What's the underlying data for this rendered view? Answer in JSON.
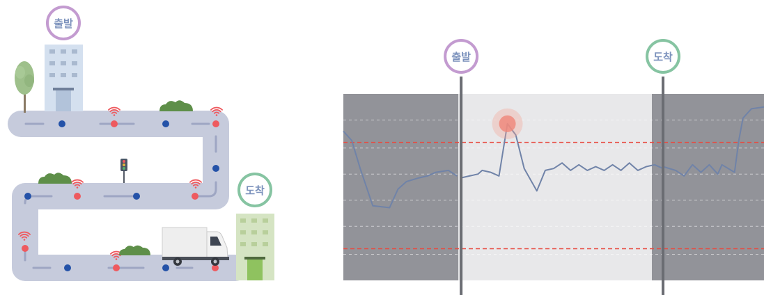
{
  "map": {
    "start_label": "출발",
    "arrival_label": "도착",
    "colors": {
      "road": "#c6cbdc",
      "road_line": "#9ea6c3",
      "blue_dot": "#2452a8",
      "red_dot": "#ee5a5f",
      "start": "#c39bd0",
      "arrival": "#86c4a2",
      "building_start": "#d4e0ef",
      "building_arrival": "#d5e4c3",
      "bush": "#5e8f49",
      "tree": "#9ec08b"
    },
    "icons": [
      "wifi-signal-icon",
      "traffic-light-icon",
      "truck-icon",
      "tree-icon",
      "bush-icon",
      "building-icon"
    ]
  },
  "chart_data": {
    "type": "line",
    "title": "",
    "xlabel": "",
    "ylabel": "",
    "xlim": [
      0,
      100
    ],
    "ylim": [
      0,
      100
    ],
    "grid": true,
    "markers": [
      {
        "label": "출발",
        "x": 28
      },
      {
        "label": "도착",
        "x": 76
      }
    ],
    "thresholds": [
      74,
      17
    ],
    "series": [
      {
        "segments": [
          [
            [
              0,
              80
            ],
            [
              2,
              75
            ],
            [
              4,
              60
            ],
            [
              7,
              40
            ],
            [
              11,
              39
            ],
            [
              13,
              49
            ],
            [
              15,
              53
            ],
            [
              18,
              55
            ],
            [
              20,
              56
            ],
            [
              22,
              58
            ],
            [
              25,
              59
            ],
            [
              27,
              56
            ]
          ],
          [
            [
              28,
              55
            ],
            [
              30,
              56
            ],
            [
              32,
              57
            ],
            [
              33,
              59
            ],
            [
              35,
              58
            ],
            [
              37,
              56
            ],
            [
              39,
              84
            ],
            [
              41,
              78
            ],
            [
              43,
              60
            ],
            [
              46,
              48
            ],
            [
              48,
              59
            ],
            [
              50,
              60
            ],
            [
              52,
              63
            ],
            [
              54,
              59
            ],
            [
              56,
              62
            ],
            [
              58,
              59
            ],
            [
              60,
              61
            ],
            [
              62,
              59
            ],
            [
              64,
              62
            ],
            [
              66,
              59
            ],
            [
              68,
              63
            ],
            [
              70,
              59
            ],
            [
              72,
              61
            ],
            [
              74,
              62
            ],
            [
              76,
              60
            ]
          ],
          [
            [
              76,
              61
            ],
            [
              79,
              59
            ],
            [
              81,
              56
            ],
            [
              83,
              62
            ],
            [
              85,
              58
            ],
            [
              87,
              62
            ],
            [
              89,
              57
            ],
            [
              90,
              62
            ],
            [
              93,
              58
            ],
            [
              94,
              75
            ],
            [
              95,
              87
            ],
            [
              97,
              92
            ],
            [
              100,
              93
            ]
          ]
        ]
      }
    ]
  }
}
